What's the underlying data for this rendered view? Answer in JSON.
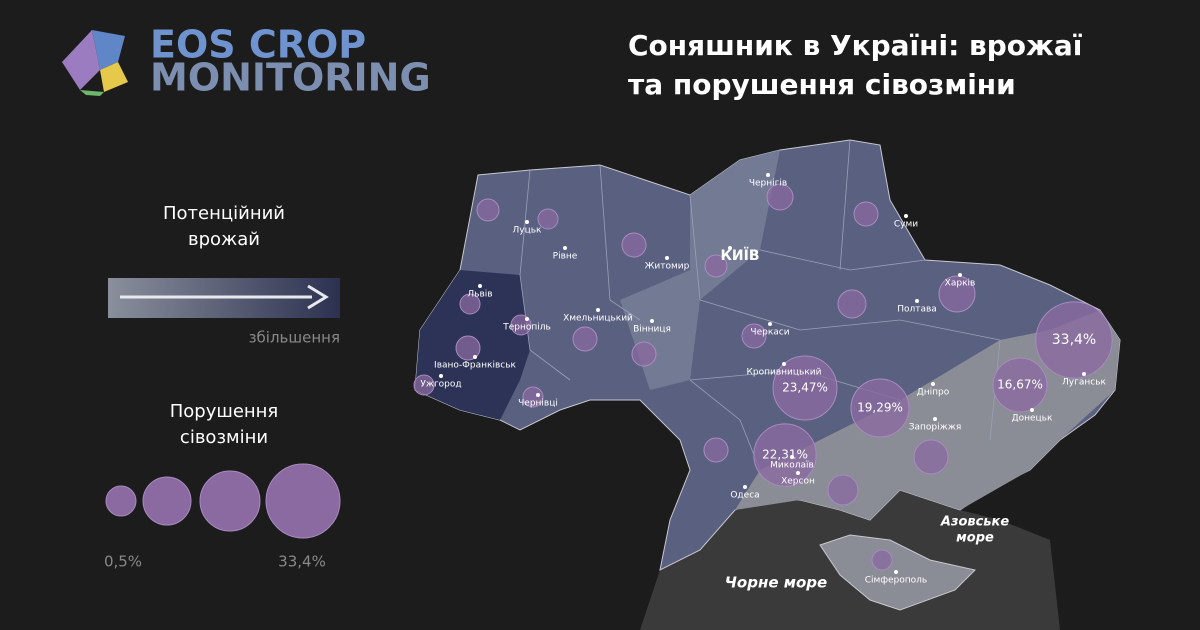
{
  "logo": {
    "line1": "EOS CROP",
    "line2": "MONITORING"
  },
  "title": {
    "line1": "Соняшник в Україні: врожаї",
    "line2": "та порушення сівозміни"
  },
  "legend": {
    "yield_title": [
      "Потенційний",
      "врожай"
    ],
    "yield_arrow_label": "збільшення",
    "rotation_title": [
      "Порушення",
      "сівозміни"
    ],
    "size_min": "0,5%",
    "size_max": "33,4%"
  },
  "map": {
    "cities": [
      "Луцьк",
      "Рівне",
      "Житомир",
      "КИЇВ",
      "Чернігів",
      "Суми",
      "Харків",
      "Полтава",
      "Львів",
      "Тернопіль",
      "Хмельницький",
      "Вінниця",
      "Черкаси",
      "Івано-Франківськ",
      "Ужгород",
      "Чернівці",
      "Кропивницький",
      "Дніпро",
      "Луганськ",
      "Донецьк",
      "Запоріжжя",
      "Миколаїв",
      "Херсон",
      "Одеса",
      "Сімферополь"
    ],
    "seas": {
      "black": "Чорне море",
      "azov": [
        "Азовське",
        "море"
      ]
    },
    "bubbles": [
      {
        "value": 33.4,
        "label": "33,4%"
      },
      {
        "value": 23.47,
        "label": "23,47%"
      },
      {
        "value": 19.29,
        "label": "19,29%"
      },
      {
        "value": 16.67,
        "label": "16,67%"
      },
      {
        "value": 22.31,
        "label": "22,31%"
      }
    ]
  }
}
